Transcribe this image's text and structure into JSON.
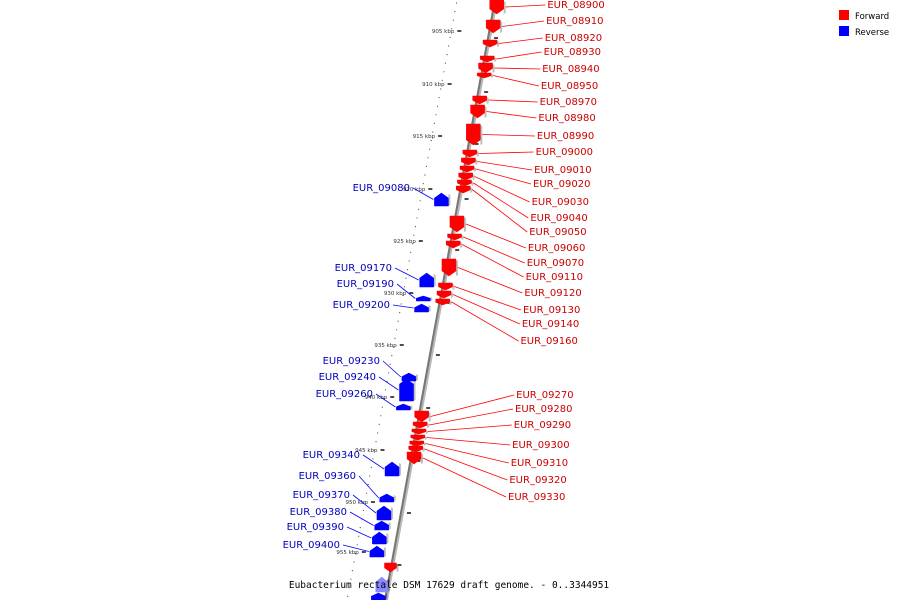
{
  "colors": {
    "forward": "#ff0000",
    "reverse": "#0000ff",
    "backbone": "#808080",
    "forward_label": "#cc0000",
    "reverse_label": "#0000bb"
  },
  "legend": {
    "forward_label": "Forward",
    "reverse_label": "Reverse"
  },
  "title": "Eubacterium rectale DSM 17629 draft genome. - 0..3344951",
  "ticks": [
    "905 kbp",
    "910 kbp",
    "915 kbp",
    "920 kbp",
    "925 kbp",
    "930 kbp",
    "935 kbp",
    "940 kbp",
    "945 kbp",
    "950 kbp",
    "955 kbp"
  ],
  "forward_genes": [
    "EUR_08900",
    "EUR_08910",
    "EUR_08920",
    "EUR_08930",
    "EUR_08940",
    "EUR_08950",
    "EUR_08970",
    "EUR_08980",
    "EUR_08990",
    "EUR_09000",
    "EUR_09010",
    "EUR_09020",
    "EUR_09030",
    "EUR_09040",
    "EUR_09050",
    "EUR_09060",
    "EUR_09070",
    "EUR_09110",
    "EUR_09120",
    "EUR_09130",
    "EUR_09140",
    "EUR_09160",
    "EUR_09270",
    "EUR_09280",
    "EUR_09290",
    "EUR_09300",
    "EUR_09310",
    "EUR_09320",
    "EUR_09330"
  ],
  "reverse_genes": [
    "EUR_09080",
    "EUR_09170",
    "EUR_09190",
    "EUR_09200",
    "EUR_09230",
    "EUR_09240",
    "EUR_09260",
    "EUR_09340",
    "EUR_09360",
    "EUR_09370",
    "EUR_09380",
    "EUR_09390",
    "EUR_09400"
  ]
}
